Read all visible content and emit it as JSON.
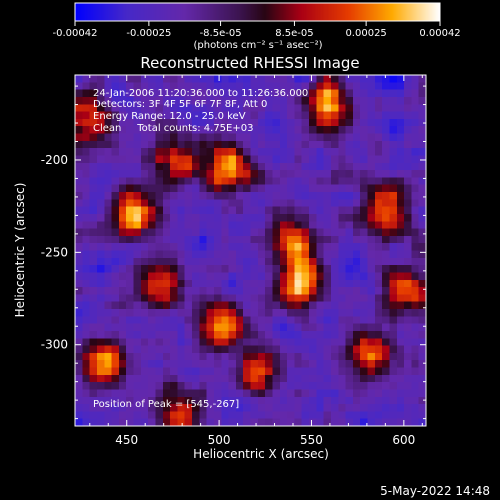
{
  "window": {
    "datestamp": "5-May-2022 14:48"
  },
  "colorbar": {
    "tick_labels": [
      "-0.00042",
      "-0.00025",
      "-8.5e-05",
      "8.5e-05",
      "0.00025",
      "0.00042"
    ],
    "unit_label": "(photons cm⁻² s⁻¹ asec⁻²)"
  },
  "annotations": {
    "time_range": "24-Jan-2006 11:20:36.000 to 11:26:36.000",
    "detectors": "Detectors: 3F 4F 5F 6F 7F 8F, Att 0",
    "energy_range": "Energy Range: 12.0 - 25.0 keV",
    "method": "Clean     Total counts: 4.75E+03",
    "peak": "Position of Peak = [545,-267]"
  },
  "chart_data": {
    "type": "heatmap",
    "title": "Reconstructed RHESSI Image",
    "xlabel": "Heliocentric X (arcsec)",
    "ylabel": "Heliocentric Y (arcsec)",
    "xlim": [
      422,
      612
    ],
    "ylim": [
      -344,
      -154
    ],
    "x_ticks": [
      450,
      500,
      550,
      600
    ],
    "y_ticks": [
      -200,
      -250,
      -300
    ],
    "clim": [
      -0.00042,
      0.00042
    ],
    "colormap": "rainbow-hot",
    "grid": false,
    "peak": {
      "x": 545,
      "y": -267
    },
    "hotspots": [
      {
        "x": 558,
        "y": -170,
        "amp": 0.0004
      },
      {
        "x": 453,
        "y": -228,
        "amp": 0.00034
      },
      {
        "x": 506,
        "y": -204,
        "amp": 0.00032
      },
      {
        "x": 590,
        "y": -226,
        "amp": 0.00033
      },
      {
        "x": 541,
        "y": -243,
        "amp": 0.00026
      },
      {
        "x": 545,
        "y": -267,
        "amp": 0.00042
      },
      {
        "x": 468,
        "y": -268,
        "amp": 0.00022
      },
      {
        "x": 502,
        "y": -290,
        "amp": 0.0003
      },
      {
        "x": 582,
        "y": -305,
        "amp": 0.00026
      },
      {
        "x": 437,
        "y": -309,
        "amp": 0.0003
      },
      {
        "x": 431,
        "y": -178,
        "amp": 0.0002
      },
      {
        "x": 475,
        "y": -200,
        "amp": 0.0002
      },
      {
        "x": 520,
        "y": -315,
        "amp": 0.00018
      },
      {
        "x": 478,
        "y": -336,
        "amp": 0.00016
      },
      {
        "x": 600,
        "y": -270,
        "amp": 0.00022
      }
    ]
  }
}
